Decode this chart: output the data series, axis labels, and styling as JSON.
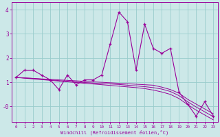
{
  "xlabel": "Windchill (Refroidissement éolien,°C)",
  "x": [
    0,
    1,
    2,
    3,
    4,
    5,
    6,
    7,
    8,
    9,
    10,
    11,
    12,
    13,
    14,
    15,
    16,
    17,
    18,
    19,
    20,
    21,
    22,
    23
  ],
  "line1": [
    1.2,
    1.5,
    1.5,
    1.3,
    1.1,
    0.7,
    1.3,
    0.9,
    1.1,
    1.1,
    1.3,
    2.6,
    3.9,
    3.5,
    1.5,
    3.4,
    2.4,
    2.2,
    2.4,
    0.6,
    0.1,
    -0.4,
    0.2,
    -0.4
  ],
  "line2": [
    1.2,
    1.18,
    1.16,
    1.14,
    1.12,
    1.1,
    1.08,
    1.06,
    1.04,
    1.02,
    1.0,
    0.98,
    0.96,
    0.94,
    0.92,
    0.9,
    0.88,
    0.8,
    0.7,
    0.55,
    0.3,
    0.1,
    -0.1,
    -0.3
  ],
  "line3": [
    1.2,
    1.18,
    1.16,
    1.13,
    1.1,
    1.07,
    1.04,
    1.01,
    0.99,
    0.97,
    0.95,
    0.93,
    0.91,
    0.88,
    0.85,
    0.82,
    0.78,
    0.72,
    0.62,
    0.45,
    0.2,
    -0.02,
    -0.22,
    -0.42
  ],
  "line4": [
    1.2,
    1.17,
    1.14,
    1.11,
    1.08,
    1.05,
    1.02,
    0.99,
    0.96,
    0.93,
    0.9,
    0.87,
    0.84,
    0.81,
    0.78,
    0.74,
    0.68,
    0.6,
    0.5,
    0.33,
    0.08,
    -0.15,
    -0.35,
    -0.55
  ],
  "line_color": "#990099",
  "bg_color": "#cce8e8",
  "grid_color": "#99cccc",
  "ylim": [
    -0.65,
    4.3
  ],
  "xlim": [
    -0.5,
    23.5
  ],
  "yticks": [
    -0.0,
    1.0,
    2.0,
    3.0,
    4.0
  ],
  "ytick_labels": [
    "-0",
    "1",
    "2",
    "3",
    "4"
  ]
}
